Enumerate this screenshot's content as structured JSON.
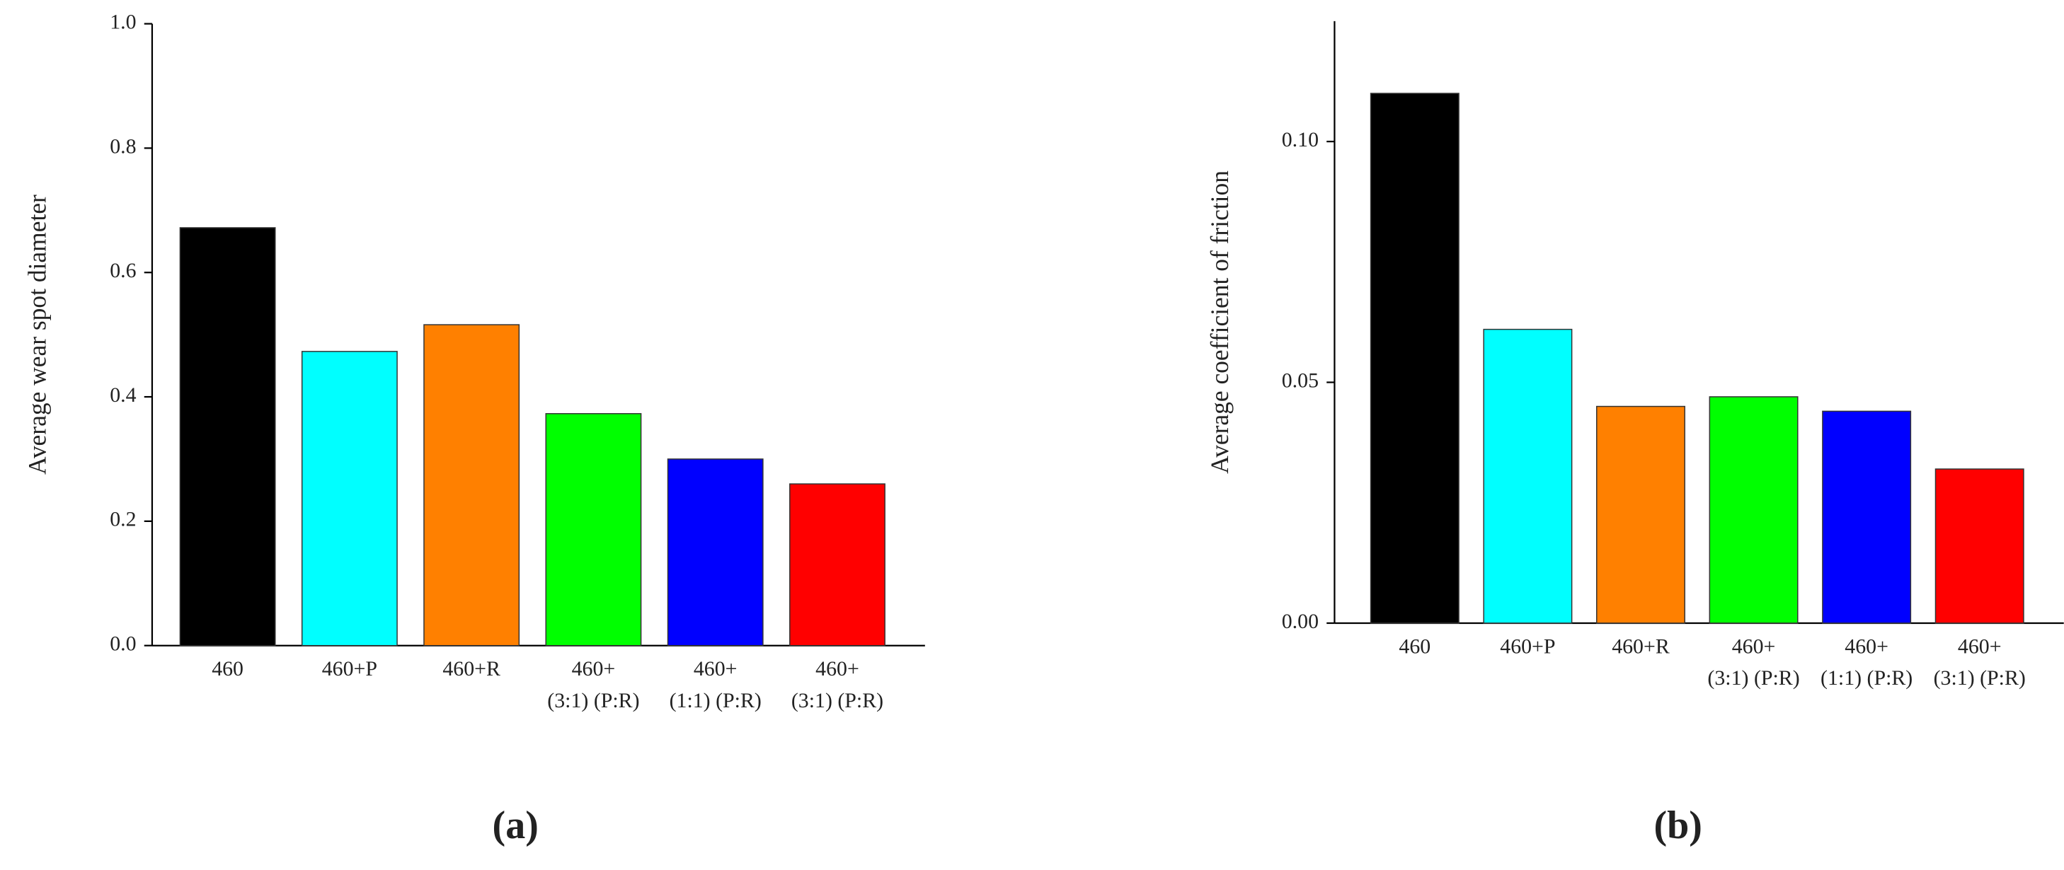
{
  "chart_data": [
    {
      "type": "bar",
      "panel_label": "(a)",
      "y_label": "Average wear spot diameter",
      "categories": [
        "460",
        "460+P",
        "460+R",
        "460+",
        "460+",
        "460+"
      ],
      "category_sublabels": [
        null,
        null,
        null,
        "(3:1) (P:R)",
        "(1:1) (P:R)",
        "(3:1) (P:R)"
      ],
      "values": [
        0.672,
        0.473,
        0.516,
        0.373,
        0.3,
        0.26
      ],
      "colors": [
        "#000000",
        "#00ffff",
        "#ff8000",
        "#00ff00",
        "#0000ff",
        "#ff0000"
      ],
      "ylim": [
        0,
        1.0
      ],
      "yticks": [
        {
          "value": 0,
          "label": "0.0"
        },
        0.2,
        0.4,
        0.6,
        0.8,
        {
          "value": 1.0,
          "label": "1.0"
        }
      ]
    },
    {
      "type": "bar",
      "panel_label": "(b)",
      "y_label": "Average coefficient of friction",
      "categories": [
        "460",
        "460+P",
        "460+R",
        "460+",
        "460+",
        "460+"
      ],
      "category_sublabels": [
        null,
        null,
        null,
        "(3:1) (P:R)",
        "(1:1) (P:R)",
        "(3:1) (P:R)"
      ],
      "values": [
        0.11,
        0.061,
        0.045,
        0.047,
        0.044,
        0.032
      ],
      "colors": [
        "#000000",
        "#00ffff",
        "#ff8000",
        "#00ff00",
        "#0000ff",
        "#ff0000"
      ],
      "ylim": [
        0,
        0.125
      ],
      "yticks": [
        {
          "value": 0,
          "label": "0.00"
        },
        {
          "value": 0.05,
          "label": "0.05"
        },
        {
          "value": 0.1,
          "label": "0.10"
        }
      ]
    }
  ]
}
